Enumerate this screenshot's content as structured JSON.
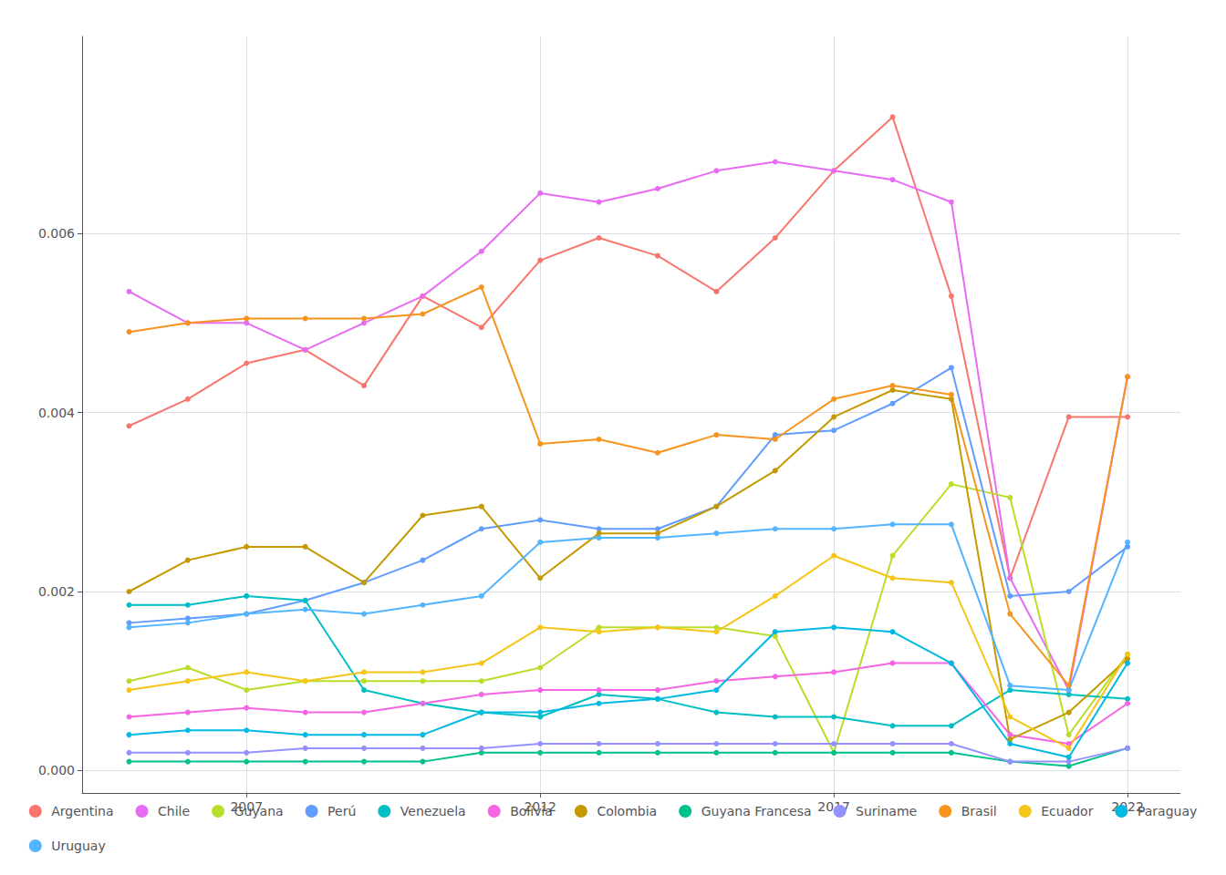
{
  "chart_data": {
    "type": "line",
    "x": [
      2005,
      2006,
      2007,
      2008,
      2009,
      2010,
      2011,
      2012,
      2013,
      2014,
      2015,
      2016,
      2017,
      2018,
      2019,
      2020,
      2021,
      2022
    ],
    "series": [
      {
        "name": "Argentina",
        "color": "#F8766D",
        "values": [
          0.00385,
          0.00415,
          0.00455,
          0.0047,
          0.0043,
          0.0053,
          0.00495,
          0.0057,
          0.00595,
          0.00575,
          0.00535,
          0.00595,
          0.0067,
          0.0073,
          0.0053,
          0.00215,
          0.00395,
          0.00395
        ]
      },
      {
        "name": "Chile",
        "color": "#E76BF3",
        "values": [
          0.00535,
          0.005,
          0.005,
          0.0047,
          0.005,
          0.0053,
          0.0058,
          0.00645,
          0.00635,
          0.0065,
          0.0067,
          0.0068,
          0.0067,
          0.0066,
          0.00635,
          0.00215,
          0.0009,
          0.0044
        ]
      },
      {
        "name": "Guyana",
        "color": "#B8DE29",
        "values": [
          0.001,
          0.00115,
          0.0009,
          0.001,
          0.001,
          0.001,
          0.001,
          0.00115,
          0.0016,
          0.0016,
          0.0016,
          0.0015,
          0.0002,
          0.0024,
          0.0032,
          0.00305,
          0.0004,
          0.0013
        ]
      },
      {
        "name": "Perú",
        "color": "#619CFF",
        "values": [
          0.00165,
          0.0017,
          0.00175,
          0.0019,
          0.0021,
          0.00235,
          0.0027,
          0.0028,
          0.0027,
          0.0027,
          0.00295,
          0.00375,
          0.0038,
          0.0041,
          0.0045,
          0.00195,
          0.002,
          0.0025
        ]
      },
      {
        "name": "Venezuela",
        "color": "#00BFC4",
        "values": [
          0.00185,
          0.00185,
          0.00195,
          0.0019,
          0.0009,
          0.00075,
          0.00065,
          0.0006,
          0.00085,
          0.0008,
          0.00065,
          0.0006,
          0.0006,
          0.0005,
          0.0005,
          0.0009,
          0.00085,
          0.0008
        ]
      },
      {
        "name": "Bolivia",
        "color": "#F564E3",
        "values": [
          0.0006,
          0.00065,
          0.0007,
          0.00065,
          0.00065,
          0.00075,
          0.00085,
          0.0009,
          0.0009,
          0.0009,
          0.001,
          0.00105,
          0.0011,
          0.0012,
          0.0012,
          0.0004,
          0.0003,
          0.00075
        ]
      },
      {
        "name": "Colombia",
        "color": "#C49A00",
        "values": [
          0.002,
          0.00235,
          0.0025,
          0.0025,
          0.0021,
          0.00285,
          0.00295,
          0.00215,
          0.00265,
          0.00265,
          0.00295,
          0.00335,
          0.00395,
          0.00425,
          0.00415,
          0.00035,
          0.00065,
          0.00125
        ]
      },
      {
        "name": "Guyana Francesa",
        "color": "#00C08B",
        "values": [
          0.0001,
          0.0001,
          0.0001,
          0.0001,
          0.0001,
          0.0001,
          0.0002,
          0.0002,
          0.0002,
          0.0002,
          0.0002,
          0.0002,
          0.0002,
          0.0002,
          0.0002,
          0.0001,
          5e-05,
          0.00025
        ]
      },
      {
        "name": "Suriname",
        "color": "#9590FF",
        "values": [
          0.0002,
          0.0002,
          0.0002,
          0.00025,
          0.00025,
          0.00025,
          0.00025,
          0.0003,
          0.0003,
          0.0003,
          0.0003,
          0.0003,
          0.0003,
          0.0003,
          0.0003,
          0.0001,
          0.0001,
          0.00025
        ]
      },
      {
        "name": "Brasil",
        "color": "#F7941D",
        "values": [
          0.0049,
          0.005,
          0.00505,
          0.00505,
          0.00505,
          0.0051,
          0.0054,
          0.00365,
          0.0037,
          0.00355,
          0.00375,
          0.0037,
          0.00415,
          0.0043,
          0.0042,
          0.00175,
          0.00095,
          0.0044
        ]
      },
      {
        "name": "Ecuador",
        "color": "#F5C518",
        "values": [
          0.0009,
          0.001,
          0.0011,
          0.001,
          0.0011,
          0.0011,
          0.0012,
          0.0016,
          0.00155,
          0.0016,
          0.00155,
          0.00195,
          0.0024,
          0.00215,
          0.0021,
          0.0006,
          0.00025,
          0.0013
        ]
      },
      {
        "name": "Paraguay",
        "color": "#00B9E3",
        "values": [
          0.0004,
          0.00045,
          0.00045,
          0.0004,
          0.0004,
          0.0004,
          0.00065,
          0.00065,
          0.00075,
          0.0008,
          0.0009,
          0.00155,
          0.0016,
          0.00155,
          0.0012,
          0.0003,
          0.00015,
          0.0012
        ]
      },
      {
        "name": "Uruguay",
        "color": "#53B4FF",
        "values": [
          0.0016,
          0.00165,
          0.00175,
          0.0018,
          0.00175,
          0.00185,
          0.00195,
          0.00255,
          0.0026,
          0.0026,
          0.00265,
          0.0027,
          0.0027,
          0.00275,
          0.00275,
          0.00095,
          0.0009,
          0.00255
        ]
      }
    ],
    "xlim": [
      2004.2,
      2022.9
    ],
    "xticks": [
      2007,
      2012,
      2017,
      2022
    ],
    "ylim": [
      -0.00025,
      0.0082
    ],
    "yticks": [
      {
        "value": 0,
        "label": "0.000"
      },
      0.002,
      0.004,
      0.006
    ],
    "grid": true,
    "legend": "bottom",
    "marker": "circle"
  }
}
